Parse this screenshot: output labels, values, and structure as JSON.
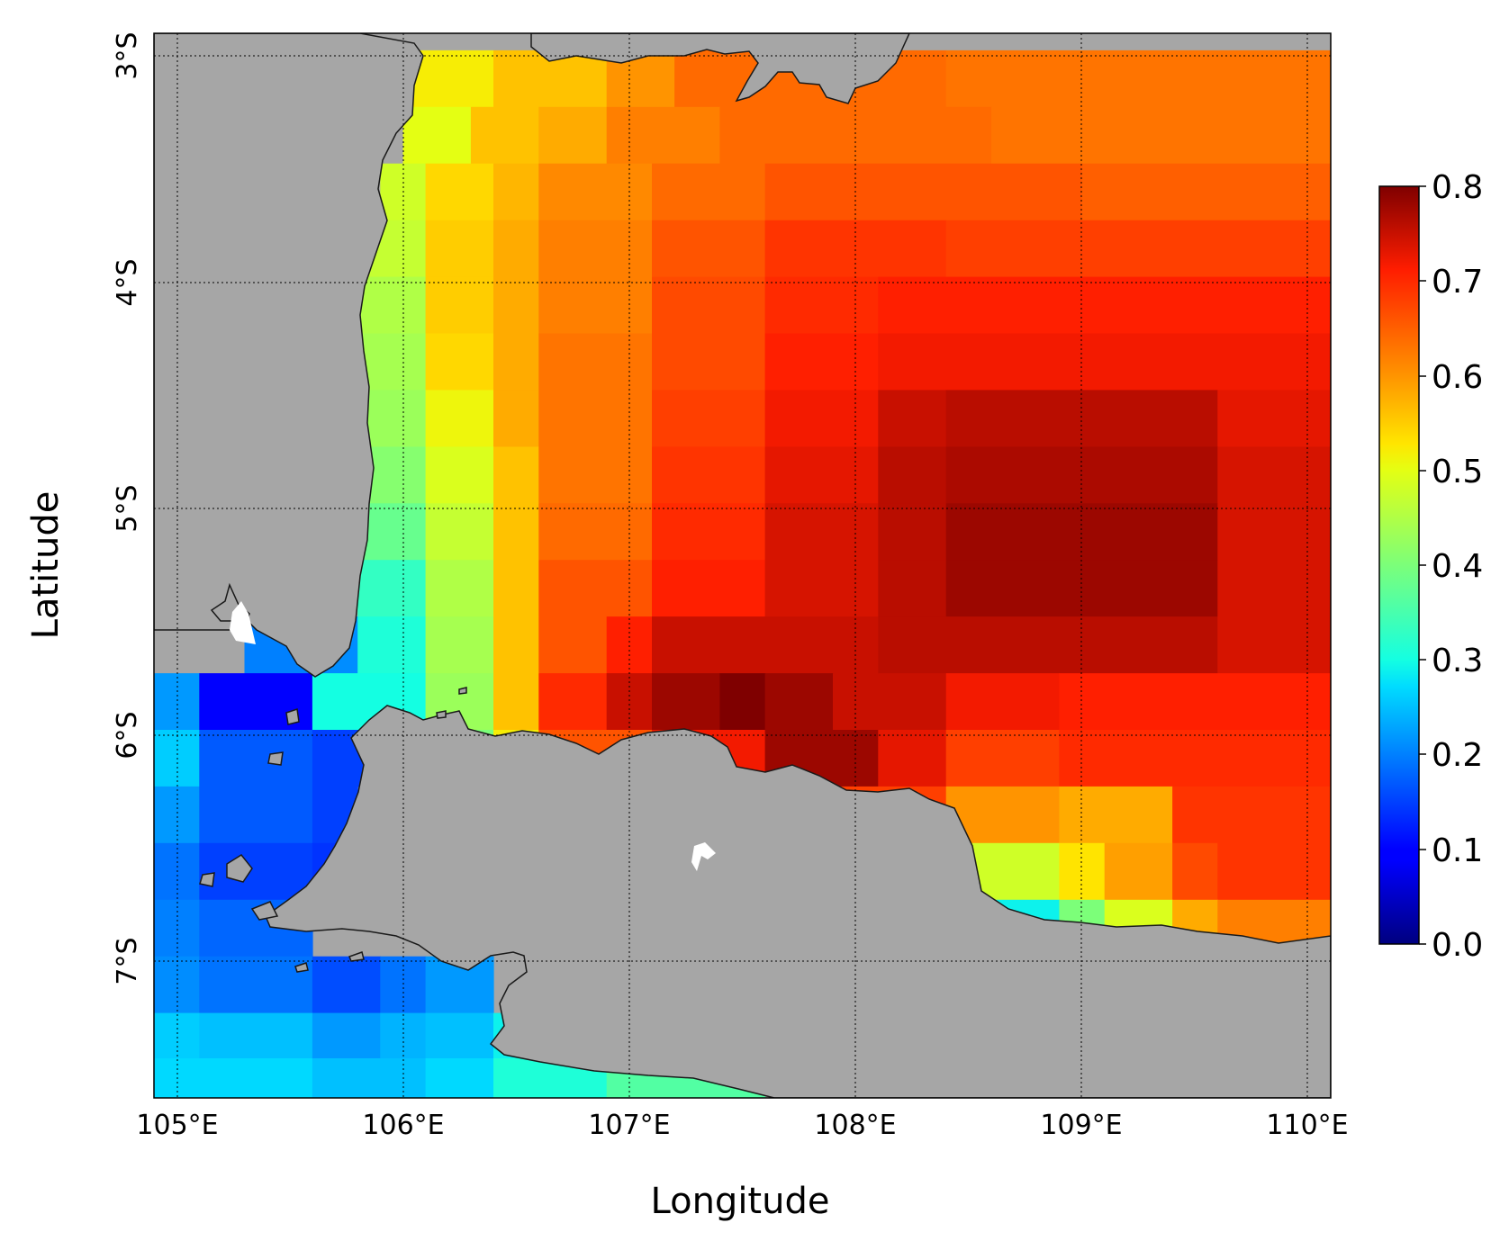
{
  "map": {
    "x_axis_label": "Longitude",
    "y_axis_label": "Latitude",
    "lon_ticks": [
      "105°E",
      "106°E",
      "107°E",
      "108°E",
      "109°E",
      "110°E"
    ],
    "lat_ticks": [
      "3°S",
      "4°S",
      "5°S",
      "6°S",
      "7°S"
    ],
    "lon_range": [
      104.9,
      110.1
    ],
    "lat_range": [
      -7.6,
      -2.9
    ],
    "land_color": "#a6a6a6",
    "colormap": "jet",
    "grid_cell_deg": 0.25
  },
  "colorbar": {
    "min": 0.0,
    "max": 0.8,
    "ticks": [
      "0.8",
      "0.7",
      "0.6",
      "0.5",
      "0.4",
      "0.3",
      "0.2",
      "0.1",
      "0.0"
    ]
  },
  "chart_data": {
    "type": "heatmap",
    "xlabel": "Longitude",
    "ylabel": "Latitude",
    "x_unit": "degrees East",
    "y_unit": "degrees (negative = South)",
    "xlim": [
      104.9,
      110.1
    ],
    "ylim": [
      -7.6,
      -2.9
    ],
    "value_range": [
      0.0,
      0.8
    ],
    "fields_by_row": "each row lists [lat, [[lon_start, lon_end, value], ...]] for sea cells",
    "rows": [
      [
        -3.1,
        [
          [
            106.0,
            106.4,
            0.52
          ],
          [
            106.4,
            106.9,
            0.56
          ],
          [
            106.9,
            107.2,
            0.6
          ],
          [
            107.2,
            108.4,
            0.64
          ],
          [
            108.4,
            110.1,
            0.63
          ]
        ]
      ],
      [
        -3.35,
        [
          [
            106.0,
            106.3,
            0.5
          ],
          [
            106.3,
            106.6,
            0.56
          ],
          [
            106.6,
            106.9,
            0.58
          ],
          [
            106.9,
            107.4,
            0.62
          ],
          [
            107.4,
            108.6,
            0.64
          ],
          [
            108.6,
            110.1,
            0.63
          ]
        ]
      ],
      [
        -3.6,
        [
          [
            105.9,
            106.1,
            0.48
          ],
          [
            106.1,
            106.4,
            0.54
          ],
          [
            106.4,
            106.6,
            0.57
          ],
          [
            106.6,
            107.1,
            0.61
          ],
          [
            107.1,
            107.6,
            0.64
          ],
          [
            107.6,
            109.0,
            0.66
          ],
          [
            109.0,
            110.1,
            0.65
          ]
        ]
      ],
      [
        -3.85,
        [
          [
            105.8,
            106.1,
            0.47
          ],
          [
            106.1,
            106.4,
            0.55
          ],
          [
            106.4,
            106.6,
            0.58
          ],
          [
            106.6,
            107.1,
            0.62
          ],
          [
            107.1,
            107.6,
            0.66
          ],
          [
            107.6,
            108.4,
            0.69
          ],
          [
            108.4,
            110.1,
            0.68
          ]
        ]
      ],
      [
        -4.1,
        [
          [
            105.8,
            106.1,
            0.45
          ],
          [
            106.1,
            106.4,
            0.55
          ],
          [
            106.4,
            106.6,
            0.58
          ],
          [
            106.6,
            107.1,
            0.62
          ],
          [
            107.1,
            107.6,
            0.67
          ],
          [
            107.6,
            108.1,
            0.7
          ],
          [
            108.1,
            110.1,
            0.71
          ]
        ]
      ],
      [
        -4.35,
        [
          [
            105.8,
            106.1,
            0.44
          ],
          [
            106.1,
            106.4,
            0.54
          ],
          [
            106.4,
            106.6,
            0.58
          ],
          [
            106.6,
            107.1,
            0.63
          ],
          [
            107.1,
            107.6,
            0.67
          ],
          [
            107.6,
            108.1,
            0.71
          ],
          [
            108.1,
            110.1,
            0.72
          ]
        ]
      ],
      [
        -4.6,
        [
          [
            105.8,
            106.1,
            0.43
          ],
          [
            106.1,
            106.4,
            0.51
          ],
          [
            106.4,
            106.6,
            0.58
          ],
          [
            106.6,
            107.1,
            0.63
          ],
          [
            107.1,
            107.6,
            0.68
          ],
          [
            107.6,
            108.1,
            0.72
          ],
          [
            108.1,
            108.4,
            0.75
          ],
          [
            108.4,
            109.6,
            0.76
          ],
          [
            109.6,
            110.1,
            0.73
          ]
        ]
      ],
      [
        -4.85,
        [
          [
            105.8,
            106.1,
            0.41
          ],
          [
            106.1,
            106.4,
            0.49
          ],
          [
            106.4,
            106.6,
            0.56
          ],
          [
            106.6,
            107.1,
            0.63
          ],
          [
            107.1,
            107.6,
            0.69
          ],
          [
            107.6,
            108.1,
            0.73
          ],
          [
            108.1,
            108.4,
            0.76
          ],
          [
            108.4,
            109.6,
            0.77
          ],
          [
            109.6,
            110.1,
            0.74
          ]
        ]
      ],
      [
        -5.1,
        [
          [
            105.8,
            106.1,
            0.38
          ],
          [
            106.1,
            106.4,
            0.47
          ],
          [
            106.4,
            106.6,
            0.56
          ],
          [
            106.6,
            107.1,
            0.64
          ],
          [
            107.1,
            107.6,
            0.7
          ],
          [
            107.6,
            108.1,
            0.74
          ],
          [
            108.1,
            108.4,
            0.76
          ],
          [
            108.4,
            109.6,
            0.78
          ],
          [
            109.6,
            110.1,
            0.74
          ]
        ]
      ],
      [
        -5.35,
        [
          [
            105.8,
            106.1,
            0.33
          ],
          [
            106.1,
            106.4,
            0.45
          ],
          [
            106.4,
            106.6,
            0.56
          ],
          [
            106.6,
            107.1,
            0.66
          ],
          [
            107.1,
            107.6,
            0.71
          ],
          [
            107.6,
            108.1,
            0.74
          ],
          [
            108.1,
            108.4,
            0.76
          ],
          [
            108.4,
            109.6,
            0.78
          ],
          [
            109.6,
            110.1,
            0.74
          ]
        ]
      ],
      [
        -5.6,
        [
          [
            105.3,
            105.6,
            0.2
          ],
          [
            105.6,
            105.8,
            0.21
          ],
          [
            105.8,
            106.1,
            0.31
          ],
          [
            106.1,
            106.4,
            0.44
          ],
          [
            106.4,
            106.6,
            0.56
          ],
          [
            106.6,
            106.9,
            0.66
          ],
          [
            106.9,
            107.1,
            0.71
          ],
          [
            107.1,
            108.1,
            0.75
          ],
          [
            108.1,
            109.6,
            0.76
          ],
          [
            109.6,
            110.1,
            0.74
          ]
        ]
      ],
      [
        -5.85,
        [
          [
            104.9,
            105.1,
            0.22
          ],
          [
            105.1,
            105.6,
            0.1
          ],
          [
            105.6,
            106.1,
            0.3
          ],
          [
            106.1,
            106.4,
            0.43
          ],
          [
            106.4,
            106.6,
            0.56
          ],
          [
            106.6,
            106.9,
            0.7
          ],
          [
            106.9,
            107.1,
            0.75
          ],
          [
            107.1,
            107.4,
            0.78
          ],
          [
            107.4,
            107.6,
            0.8
          ],
          [
            107.6,
            107.9,
            0.78
          ],
          [
            107.9,
            108.4,
            0.75
          ],
          [
            108.4,
            108.9,
            0.72
          ],
          [
            108.9,
            110.1,
            0.71
          ]
        ]
      ],
      [
        -6.1,
        [
          [
            104.9,
            105.1,
            0.26
          ],
          [
            105.1,
            105.6,
            0.17
          ],
          [
            105.6,
            105.9,
            0.15
          ],
          [
            105.9,
            106.1,
            0.3
          ],
          [
            106.1,
            106.4,
            0.4
          ],
          [
            106.4,
            106.6,
            0.52
          ],
          [
            106.6,
            107.1,
            0.66
          ],
          [
            107.1,
            107.6,
            0.72
          ],
          [
            107.6,
            108.1,
            0.78
          ],
          [
            108.1,
            108.4,
            0.73
          ],
          [
            108.4,
            108.9,
            0.68
          ],
          [
            108.9,
            110.1,
            0.7
          ]
        ]
      ],
      [
        -6.35,
        [
          [
            104.9,
            105.1,
            0.22
          ],
          [
            105.1,
            105.6,
            0.17
          ],
          [
            105.6,
            105.8,
            0.15
          ],
          [
            107.6,
            107.9,
            0.74
          ],
          [
            107.9,
            108.4,
            0.68
          ],
          [
            108.4,
            108.9,
            0.6
          ],
          [
            108.9,
            109.4,
            0.58
          ],
          [
            109.4,
            110.1,
            0.69
          ]
        ]
      ],
      [
        -6.6,
        [
          [
            104.9,
            105.1,
            0.19
          ],
          [
            105.1,
            105.6,
            0.15
          ],
          [
            105.6,
            105.8,
            0.14
          ],
          [
            108.4,
            108.9,
            0.48
          ],
          [
            108.9,
            109.1,
            0.53
          ],
          [
            109.1,
            109.4,
            0.59
          ],
          [
            109.4,
            109.6,
            0.67
          ],
          [
            109.6,
            110.1,
            0.69
          ]
        ]
      ],
      [
        -6.85,
        [
          [
            104.9,
            105.1,
            0.2
          ],
          [
            105.1,
            105.6,
            0.18
          ],
          [
            108.4,
            108.9,
            0.29
          ],
          [
            108.9,
            109.1,
            0.4
          ],
          [
            109.1,
            109.4,
            0.49
          ],
          [
            109.4,
            109.6,
            0.58
          ],
          [
            109.6,
            110.1,
            0.62
          ]
        ]
      ],
      [
        -7.1,
        [
          [
            104.9,
            105.1,
            0.21
          ],
          [
            105.1,
            105.6,
            0.19
          ],
          [
            105.6,
            105.9,
            0.16
          ],
          [
            105.9,
            106.1,
            0.19
          ],
          [
            106.1,
            106.4,
            0.22
          ]
        ]
      ],
      [
        -7.35,
        [
          [
            104.9,
            105.1,
            0.26
          ],
          [
            105.1,
            105.6,
            0.25
          ],
          [
            105.6,
            105.9,
            0.22
          ],
          [
            105.9,
            106.1,
            0.24
          ],
          [
            106.1,
            106.4,
            0.25
          ],
          [
            106.4,
            106.6,
            0.29
          ]
        ]
      ],
      [
        -7.55,
        [
          [
            104.9,
            105.1,
            0.27
          ],
          [
            105.1,
            105.6,
            0.27
          ],
          [
            105.6,
            106.1,
            0.25
          ],
          [
            106.1,
            106.4,
            0.27
          ],
          [
            106.4,
            106.9,
            0.31
          ],
          [
            106.9,
            107.6,
            0.36
          ]
        ]
      ]
    ]
  }
}
